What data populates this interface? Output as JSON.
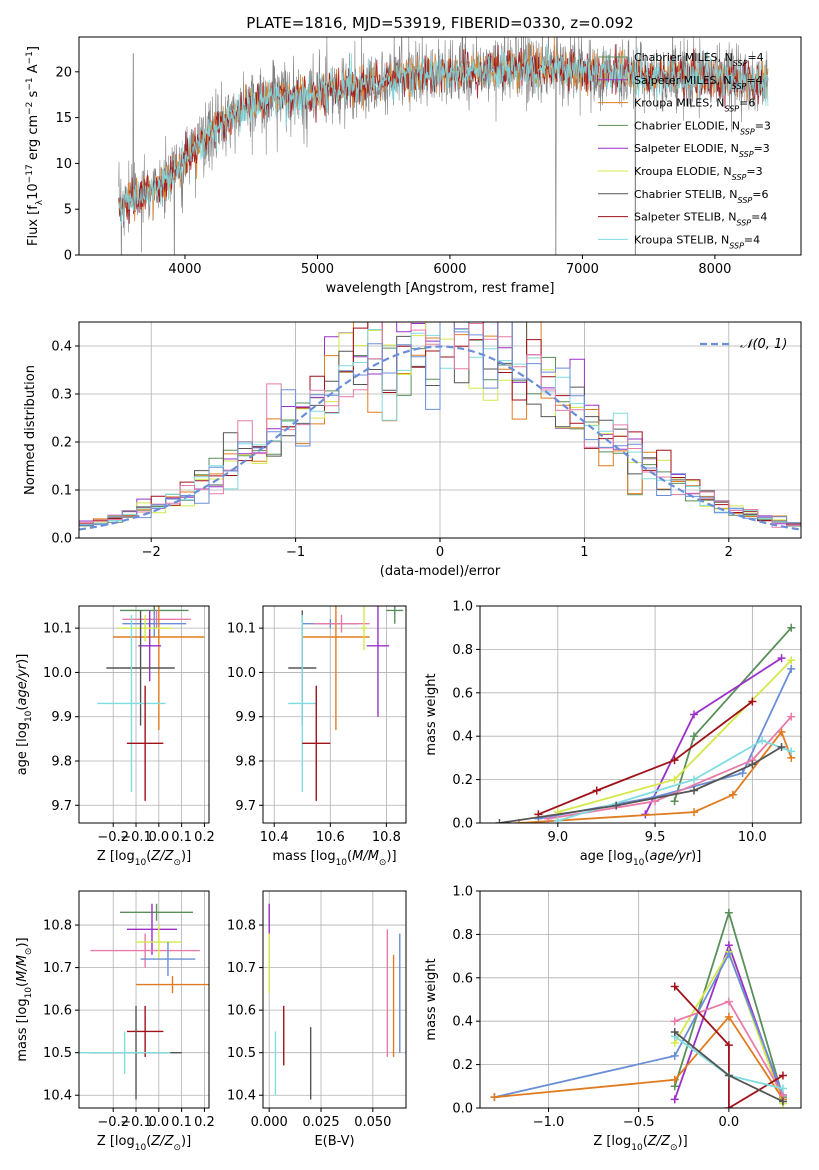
{
  "title": "PLATE=1816, MJD=53919, FIBERID=0330, z=0.092",
  "colors": {
    "Chabrier MILES": "#5a8f5a",
    "Salpeter MILES": "#9b30c8",
    "Kroupa MILES": "#e07b1f",
    "Chabrier ELODIE": "#5a8f5a",
    "Salpeter ELODIE": "#9b30c8",
    "Kroupa ELODIE": "#d4e84a",
    "Chabrier STELIB": "#555555",
    "Salpeter STELIB": "#a0111a",
    "Kroupa STELIB": "#7fdce0",
    "pink": "#e87ba8",
    "blue": "#6a8fd8",
    "gray": "#808080"
  },
  "chart_data": [
    {
      "type": "line",
      "title": "PLATE=1816, MJD=53919, FIBERID=0330, z=0.092",
      "xlabel": "wavelength [Angstrom, rest frame]",
      "ylabel": "Flux [fλ10⁻¹⁷ erg cm⁻² s⁻¹ A⁻¹]",
      "xlim": [
        3200,
        8650
      ],
      "ylim": [
        0,
        23.8
      ],
      "xticks": [
        4000,
        5000,
        6000,
        7000,
        8000
      ],
      "yticks": [
        0,
        5,
        10,
        15,
        20
      ],
      "legend_position": "right",
      "legend": [
        {
          "text": "Chabrier MILES, N",
          "sub": "SSP",
          "tail": "=4",
          "color": "Chabrier MILES"
        },
        {
          "text": "Salpeter MILES, N",
          "sub": "SSP",
          "tail": "=4",
          "color": "Salpeter MILES"
        },
        {
          "text": "Kroupa MILES, N",
          "sub": "SSP",
          "tail": "=6",
          "color": "Kroupa MILES"
        },
        {
          "text": "Chabrier ELODIE, N",
          "sub": "SSP",
          "tail": "=3",
          "color": "Chabrier ELODIE"
        },
        {
          "text": "Salpeter ELODIE, N",
          "sub": "SSP",
          "tail": "=3",
          "color": "Salpeter ELODIE"
        },
        {
          "text": "Kroupa ELODIE, N",
          "sub": "SSP",
          "tail": "=3",
          "color": "Kroupa ELODIE"
        },
        {
          "text": "Chabrier STELIB, N",
          "sub": "SSP",
          "tail": "=6",
          "color": "Chabrier STELIB"
        },
        {
          "text": "Salpeter STELIB, N",
          "sub": "SSP",
          "tail": "=4",
          "color": "Salpeter STELIB"
        },
        {
          "text": "Kroupa STELIB, N",
          "sub": "SSP",
          "tail": "=4",
          "color": "Kroupa STELIB"
        }
      ],
      "continuum": [
        [
          3500,
          5.5
        ],
        [
          3700,
          6.5
        ],
        [
          3900,
          8.5
        ],
        [
          4000,
          10.5
        ],
        [
          4200,
          13.5
        ],
        [
          4400,
          15.5
        ],
        [
          4600,
          17
        ],
        [
          4800,
          17.5
        ],
        [
          5000,
          17.5
        ],
        [
          5200,
          18.2
        ],
        [
          5400,
          18.8
        ],
        [
          5600,
          19.2
        ],
        [
          5800,
          19.6
        ],
        [
          6000,
          19.8
        ],
        [
          6200,
          20
        ],
        [
          6400,
          20.3
        ],
        [
          6600,
          20.5
        ],
        [
          6800,
          20.2
        ],
        [
          7000,
          20
        ],
        [
          7200,
          19.8
        ],
        [
          7400,
          19.6
        ],
        [
          7600,
          19.5
        ],
        [
          7800,
          19.4
        ],
        [
          8000,
          19.3
        ],
        [
          8200,
          19
        ],
        [
          8400,
          18.6
        ]
      ],
      "spikes": [
        [
          3520,
          0
        ],
        [
          3610,
          22
        ],
        [
          3920,
          0
        ],
        [
          6800,
          0
        ],
        [
          7400,
          0
        ]
      ]
    },
    {
      "type": "bar",
      "xlabel": "(data-model)/error",
      "ylabel": "Normed distribution",
      "xlim": [
        -2.5,
        2.5
      ],
      "ylim": [
        0,
        0.45
      ],
      "xticks": [
        -2,
        -1,
        0,
        1,
        2
      ],
      "yticks": [
        0.0,
        0.1,
        0.2,
        0.3,
        0.4
      ],
      "legend": "𝒩(0, 1)",
      "legend_position": "top-right",
      "bin_width": 0.1,
      "series_colors": [
        "Chabrier MILES",
        "Salpeter MILES",
        "Kroupa MILES",
        "Kroupa ELODIE",
        "Chabrier STELIB",
        "Salpeter STELIB",
        "Kroupa STELIB",
        "pink",
        "blue"
      ]
    },
    {
      "type": "scatter",
      "xlabel": "Z [log₁₀(Z/Z⊙)]",
      "ylabel": "age  [log₁₀(age/yr)]",
      "xlim": [
        -0.35,
        0.22
      ],
      "ylim": [
        9.66,
        10.15
      ],
      "xticks": [
        -0.2,
        -0.1,
        0.0,
        0.1,
        0.2
      ],
      "yticks": [
        9.7,
        9.8,
        9.9,
        10.0,
        10.1
      ],
      "points": [
        {
          "x": -0.02,
          "y": 10.14,
          "xerr": 0.15,
          "yerr": 0.01,
          "color": "Chabrier MILES"
        },
        {
          "x": -0.01,
          "y": 10.12,
          "xerr": 0.15,
          "yerr": 0.02,
          "color": "pink"
        },
        {
          "x": -0.02,
          "y": 10.11,
          "xerr": 0.14,
          "yerr": 0.03,
          "color": "blue"
        },
        {
          "x": 0.0,
          "y": 10.08,
          "xerr": 0.2,
          "yerr": 0.21,
          "color": "Kroupa MILES"
        },
        {
          "x": -0.04,
          "y": 10.06,
          "xerr": 0.05,
          "yerr": 0.08,
          "color": "Salpeter MILES"
        },
        {
          "x": -0.06,
          "y": 10.1,
          "xerr": 0.12,
          "yerr": 0.03,
          "color": "Kroupa ELODIE"
        },
        {
          "x": -0.08,
          "y": 10.01,
          "xerr": 0.15,
          "yerr": 0.13,
          "color": "Chabrier STELIB"
        },
        {
          "x": -0.12,
          "y": 9.93,
          "xerr": 0.15,
          "yerr": 0.2,
          "color": "Kroupa STELIB"
        },
        {
          "x": -0.06,
          "y": 9.84,
          "xerr": 0.08,
          "yerr": 0.13,
          "color": "Salpeter STELIB"
        }
      ]
    },
    {
      "type": "scatter",
      "xlabel": "mass [log₁₀(M/M⊙)]",
      "ylabel": "",
      "xlim": [
        10.36,
        10.87
      ],
      "ylim": [
        9.66,
        10.15
      ],
      "xticks": [
        10.4,
        10.6,
        10.8
      ],
      "yticks": [
        9.7,
        9.8,
        9.9,
        10.0,
        10.1
      ],
      "points": [
        {
          "x": 10.83,
          "y": 10.14,
          "xerr": 0.03,
          "yerr": 0.03,
          "color": "Chabrier MILES"
        },
        {
          "x": 10.6,
          "y": 10.11,
          "xerr": 0.1,
          "yerr": 0.01,
          "color": "blue"
        },
        {
          "x": 10.62,
          "y": 10.08,
          "xerr": 0.12,
          "yerr": 0.21,
          "color": "Kroupa MILES"
        },
        {
          "x": 10.77,
          "y": 10.06,
          "xerr": 0.04,
          "yerr": 0.16,
          "color": "Salpeter MILES"
        },
        {
          "x": 10.64,
          "y": 10.11,
          "xerr": 0.1,
          "yerr": 0.02,
          "color": "pink"
        },
        {
          "x": 10.72,
          "y": 10.1,
          "xerr": 0.01,
          "yerr": 0.05,
          "color": "Kroupa ELODIE"
        },
        {
          "x": 10.5,
          "y": 10.01,
          "xerr": 0.05,
          "yerr": 0.13,
          "color": "Chabrier STELIB"
        },
        {
          "x": 10.5,
          "y": 9.93,
          "xerr": 0.05,
          "yerr": 0.2,
          "color": "Kroupa STELIB"
        },
        {
          "x": 10.55,
          "y": 9.84,
          "xerr": 0.05,
          "yerr": 0.13,
          "color": "Salpeter STELIB"
        }
      ]
    },
    {
      "type": "line",
      "xlabel": "age  [log₁₀(age/yr)]",
      "ylabel": "mass weight",
      "xlim": [
        8.6,
        10.25
      ],
      "ylim": [
        0,
        1.0
      ],
      "xticks": [
        9.0,
        9.5,
        10.0
      ],
      "yticks": [
        0.0,
        0.2,
        0.4,
        0.6,
        0.8,
        1.0
      ],
      "series": [
        {
          "color": "Chabrier MILES",
          "x": [
            9.6,
            9.7,
            10.2
          ],
          "y": [
            0.1,
            0.4,
            0.9
          ]
        },
        {
          "color": "Salpeter MILES",
          "x": [
            9.45,
            9.7,
            10.15
          ],
          "y": [
            0.04,
            0.5,
            0.76
          ]
        },
        {
          "color": "Kroupa ELODIE",
          "x": [
            9.0,
            9.6,
            10.2
          ],
          "y": [
            0.05,
            0.2,
            0.75
          ]
        },
        {
          "color": "blue",
          "x": [
            8.9,
            9.5,
            9.95,
            10.2
          ],
          "y": [
            0.02,
            0.12,
            0.23,
            0.71
          ]
        },
        {
          "color": "Kroupa MILES",
          "x": [
            8.8,
            9.7,
            9.9,
            10.15,
            10.2
          ],
          "y": [
            0.0,
            0.05,
            0.13,
            0.42,
            0.3
          ]
        },
        {
          "color": "Salpeter STELIB",
          "x": [
            8.9,
            9.2,
            9.6,
            10.0
          ],
          "y": [
            0.04,
            0.15,
            0.29,
            0.56
          ]
        },
        {
          "color": "pink",
          "x": [
            8.95,
            9.5,
            10.0,
            10.2
          ],
          "y": [
            0.02,
            0.1,
            0.29,
            0.49
          ]
        },
        {
          "color": "Kroupa STELIB",
          "x": [
            9.0,
            9.7,
            10.05,
            10.2
          ],
          "y": [
            0.01,
            0.2,
            0.38,
            0.33
          ]
        },
        {
          "color": "Chabrier STELIB",
          "x": [
            8.7,
            9.3,
            9.7,
            10.0,
            10.15
          ],
          "y": [
            0.0,
            0.08,
            0.15,
            0.27,
            0.35
          ]
        }
      ]
    },
    {
      "type": "scatter",
      "xlabel": "Z [log₁₀(Z/Z⊙)]",
      "ylabel": "mass [log₁₀(M/M⊙)]",
      "xlim": [
        -0.35,
        0.22
      ],
      "ylim": [
        10.37,
        10.88
      ],
      "xticks": [
        -0.2,
        -0.1,
        0.0,
        0.1,
        0.2
      ],
      "yticks": [
        10.4,
        10.5,
        10.6,
        10.7,
        10.8
      ],
      "points": [
        {
          "x": -0.01,
          "y": 10.83,
          "xerr": 0.16,
          "yerr": 0.02,
          "color": "Chabrier MILES"
        },
        {
          "x": -0.03,
          "y": 10.79,
          "xerr": 0.11,
          "yerr": 0.06,
          "color": "Salpeter MILES"
        },
        {
          "x": -0.06,
          "y": 10.74,
          "xerr": 0.24,
          "yerr": 0.04,
          "color": "pink"
        },
        {
          "x": 0.0,
          "y": 10.76,
          "xerr": 0.1,
          "yerr": 0.04,
          "color": "Kroupa ELODIE"
        },
        {
          "x": 0.04,
          "y": 10.72,
          "xerr": 0.12,
          "yerr": 0.04,
          "color": "blue"
        },
        {
          "x": 0.06,
          "y": 10.66,
          "xerr": 0.16,
          "yerr": 0.02,
          "color": "Kroupa MILES"
        },
        {
          "x": -0.06,
          "y": 10.55,
          "xerr": 0.08,
          "yerr": 0.06,
          "color": "Salpeter STELIB"
        },
        {
          "x": -0.1,
          "y": 10.5,
          "xerr": 0.2,
          "yerr": 0.11,
          "color": "Chabrier STELIB"
        },
        {
          "x": -0.15,
          "y": 10.5,
          "xerr": 0.2,
          "yerr": 0.05,
          "color": "Kroupa STELIB"
        }
      ]
    },
    {
      "type": "scatter",
      "xlabel": "E(B-V)",
      "ylabel": "",
      "xlim": [
        -0.003,
        0.066
      ],
      "ylim": [
        10.37,
        10.88
      ],
      "xticks": [
        0.0,
        0.025,
        0.05
      ],
      "xticklabels": [
        "0.000",
        "0.025",
        "0.050"
      ],
      "yticks": [
        10.4,
        10.5,
        10.6,
        10.7,
        10.8
      ],
      "vlines": [
        {
          "x": 0.0,
          "y0": 10.78,
          "y1": 10.85,
          "color": "Salpeter MILES"
        },
        {
          "x": 0.0,
          "y0": 10.64,
          "y1": 10.78,
          "color": "Kroupa ELODIE"
        },
        {
          "x": 0.003,
          "y0": 10.4,
          "y1": 10.55,
          "color": "Kroupa STELIB"
        },
        {
          "x": 0.007,
          "y0": 10.47,
          "y1": 10.61,
          "color": "Salpeter STELIB"
        },
        {
          "x": 0.02,
          "y0": 10.39,
          "y1": 10.56,
          "color": "Chabrier STELIB"
        },
        {
          "x": 0.057,
          "y0": 10.49,
          "y1": 10.79,
          "color": "pink"
        },
        {
          "x": 0.06,
          "y0": 10.49,
          "y1": 10.73,
          "color": "Kroupa MILES"
        },
        {
          "x": 0.063,
          "y0": 10.5,
          "y1": 10.78,
          "color": "blue"
        }
      ]
    },
    {
      "type": "line",
      "xlabel": "Z [log₁₀(Z/Z⊙)]",
      "ylabel": "mass weight",
      "xlim": [
        -1.38,
        0.4
      ],
      "ylim": [
        0,
        1.0
      ],
      "xticks": [
        -1.0,
        -0.5,
        0.0
      ],
      "yticks": [
        0.0,
        0.2,
        0.4,
        0.6,
        0.8,
        1.0
      ],
      "series": [
        {
          "color": "Chabrier MILES",
          "x": [
            -0.3,
            0.0,
            0.3
          ],
          "y": [
            0.1,
            0.9,
            0.05
          ]
        },
        {
          "color": "Salpeter MILES",
          "x": [
            -0.3,
            0.0,
            0.3
          ],
          "y": [
            0.04,
            0.75,
            0.04
          ]
        },
        {
          "color": "Kroupa ELODIE",
          "x": [
            -0.3,
            0.0,
            0.3
          ],
          "y": [
            0.3,
            0.72,
            0.02
          ]
        },
        {
          "color": "blue",
          "x": [
            -1.3,
            -0.3,
            0.0,
            0.3
          ],
          "y": [
            0.05,
            0.24,
            0.71,
            0.06
          ]
        },
        {
          "color": "Kroupa MILES",
          "x": [
            -1.3,
            -0.3,
            0.0,
            0.3
          ],
          "y": [
            0.05,
            0.13,
            0.42,
            0.04
          ]
        },
        {
          "color": "pink",
          "x": [
            -0.3,
            0.0,
            0.3
          ],
          "y": [
            0.4,
            0.49,
            0.06
          ]
        },
        {
          "color": "Salpeter STELIB",
          "x": [
            -0.3,
            0.0,
            0.0,
            0.3
          ],
          "y": [
            0.56,
            0.29,
            0.0,
            0.15
          ]
        },
        {
          "color": "Kroupa STELIB",
          "x": [
            -0.3,
            0.0,
            0.3
          ],
          "y": [
            0.33,
            0.15,
            0.09
          ]
        },
        {
          "color": "Chabrier STELIB",
          "x": [
            -0.3,
            0.0,
            0.3
          ],
          "y": [
            0.35,
            0.15,
            0.03
          ]
        }
      ]
    }
  ]
}
